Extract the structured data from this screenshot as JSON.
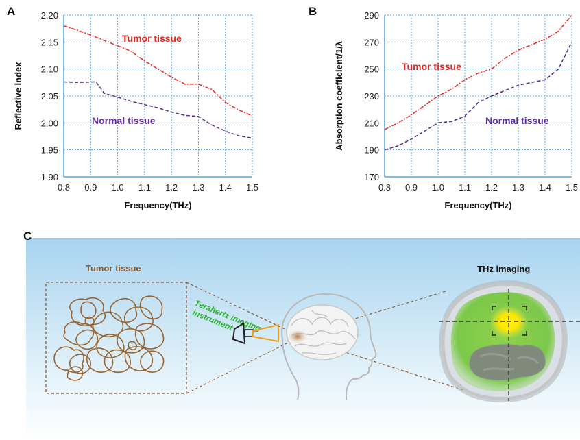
{
  "chart_data": [
    {
      "type": "line",
      "panel": "A",
      "xlabel": "Frequency(THz)",
      "ylabel": "Reflective index",
      "xlim": [
        0.8,
        1.5
      ],
      "ylim": [
        1.9,
        2.2
      ],
      "x_ticks": [
        "0.8",
        "0.9",
        "1.0",
        "1.1",
        "1.2",
        "1.3",
        "1.4",
        "1.5"
      ],
      "y_ticks": [
        "1.90",
        "1.95",
        "2.00",
        "2.05",
        "2.10",
        "2.15",
        "2.20"
      ],
      "grid": true,
      "series": [
        {
          "name": "Tumor tissue",
          "color": "#e8261e",
          "points": [
            [
              0.8,
              2.18
            ],
            [
              0.85,
              2.172
            ],
            [
              0.9,
              2.163
            ],
            [
              0.95,
              2.153
            ],
            [
              1.0,
              2.143
            ],
            [
              1.05,
              2.133
            ],
            [
              1.1,
              2.115
            ],
            [
              1.15,
              2.1
            ],
            [
              1.2,
              2.085
            ],
            [
              1.25,
              2.072
            ],
            [
              1.3,
              2.072
            ],
            [
              1.35,
              2.062
            ],
            [
              1.4,
              2.038
            ],
            [
              1.45,
              2.024
            ],
            [
              1.5,
              2.013
            ]
          ]
        },
        {
          "name": "Normal tissue",
          "color": "#5b2c8f",
          "points": [
            [
              0.8,
              2.076
            ],
            [
              0.85,
              2.075
            ],
            [
              0.92,
              2.076
            ],
            [
              0.95,
              2.055
            ],
            [
              1.0,
              2.048
            ],
            [
              1.05,
              2.04
            ],
            [
              1.1,
              2.034
            ],
            [
              1.15,
              2.028
            ],
            [
              1.2,
              2.02
            ],
            [
              1.25,
              2.014
            ],
            [
              1.3,
              2.012
            ],
            [
              1.35,
              1.996
            ],
            [
              1.4,
              1.985
            ],
            [
              1.45,
              1.976
            ],
            [
              1.5,
              1.972
            ]
          ]
        }
      ]
    },
    {
      "type": "line",
      "panel": "B",
      "xlabel": "Frequency(THz)",
      "ylabel": "Absorption coefficient/1/λ",
      "xlim": [
        0.8,
        1.5
      ],
      "ylim": [
        170,
        290
      ],
      "x_ticks": [
        "0.8",
        "0.9",
        "1.0",
        "1.1",
        "1.2",
        "1.3",
        "1.4",
        "1.5"
      ],
      "y_ticks": [
        "170",
        "190",
        "210",
        "230",
        "250",
        "270",
        "290"
      ],
      "grid": true,
      "series": [
        {
          "name": "Tumor tissue",
          "color": "#e8261e",
          "points": [
            [
              0.8,
              205
            ],
            [
              0.85,
              210
            ],
            [
              0.9,
              216
            ],
            [
              0.95,
              223
            ],
            [
              1.0,
              230
            ],
            [
              1.05,
              235
            ],
            [
              1.1,
              242
            ],
            [
              1.15,
              247
            ],
            [
              1.2,
              250
            ],
            [
              1.25,
              258
            ],
            [
              1.3,
              264
            ],
            [
              1.35,
              268
            ],
            [
              1.4,
              272
            ],
            [
              1.45,
              278
            ],
            [
              1.5,
              290
            ]
          ]
        },
        {
          "name": "Normal tissue",
          "color": "#4d2a91",
          "points": [
            [
              0.8,
              190
            ],
            [
              0.85,
              193
            ],
            [
              0.9,
              198
            ],
            [
              0.95,
              204
            ],
            [
              1.0,
              210
            ],
            [
              1.05,
              211
            ],
            [
              1.1,
              215
            ],
            [
              1.15,
              225
            ],
            [
              1.2,
              230
            ],
            [
              1.25,
              234
            ],
            [
              1.3,
              238
            ],
            [
              1.35,
              240
            ],
            [
              1.4,
              242
            ],
            [
              1.45,
              250
            ],
            [
              1.5,
              270
            ]
          ]
        }
      ]
    }
  ],
  "panels": {
    "a": "A",
    "b": "B",
    "c": "C"
  },
  "labels": {
    "a_tumor": "Tumor tissue",
    "a_normal": "Normal tissue",
    "b_tumor": "Tumor tissue",
    "b_normal": "Normal tissue"
  },
  "panel_c": {
    "tumor_tissue_label": "Tumor tissue",
    "instrument_label_line1": "Terahertz imaging",
    "instrument_label_line2": "instrument",
    "thz_imaging_label": "THz imaging",
    "colors": {
      "tumor_label": "#8a5a2b",
      "instrument_label": "#2bb52b",
      "tumor_outline": "#9a6532"
    }
  }
}
